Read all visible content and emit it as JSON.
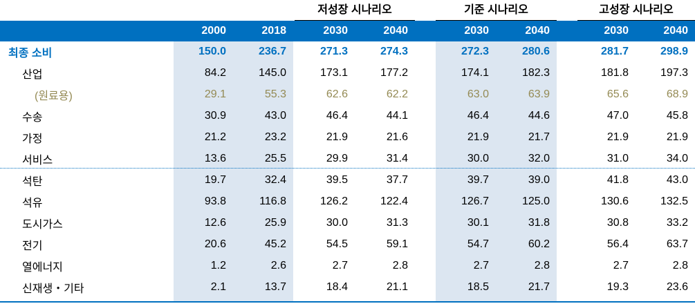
{
  "scenarios": [
    {
      "label": "저성장 시나리오"
    },
    {
      "label": "기준 시나리오"
    },
    {
      "label": "고성장 시나리오"
    }
  ],
  "years": [
    "2000",
    "2018",
    "2030",
    "2040",
    "2030",
    "2040",
    "2030",
    "2040"
  ],
  "rows": [
    {
      "label": "최종 소비",
      "values": [
        "150.0",
        "236.7",
        "271.3",
        "274.3",
        "272.3",
        "280.6",
        "281.7",
        "298.9"
      ]
    },
    {
      "label": "산업",
      "values": [
        "84.2",
        "145.0",
        "173.1",
        "177.2",
        "174.1",
        "182.3",
        "181.8",
        "197.3"
      ]
    },
    {
      "label": "(원료용)",
      "values": [
        "29.1",
        "55.3",
        "62.6",
        "62.2",
        "63.0",
        "63.9",
        "65.6",
        "68.9"
      ]
    },
    {
      "label": "수송",
      "values": [
        "30.9",
        "43.0",
        "46.4",
        "44.1",
        "46.4",
        "44.6",
        "47.0",
        "45.8"
      ]
    },
    {
      "label": "가정",
      "values": [
        "21.2",
        "23.2",
        "21.9",
        "21.6",
        "21.9",
        "21.7",
        "21.9",
        "21.9"
      ]
    },
    {
      "label": "서비스",
      "values": [
        "13.6",
        "25.5",
        "29.9",
        "31.4",
        "30.0",
        "32.0",
        "31.0",
        "34.0"
      ]
    },
    {
      "label": "석탄",
      "values": [
        "19.7",
        "32.4",
        "39.5",
        "37.7",
        "39.7",
        "39.0",
        "41.8",
        "43.0"
      ]
    },
    {
      "label": "석유",
      "values": [
        "93.8",
        "116.8",
        "126.2",
        "122.4",
        "126.7",
        "125.0",
        "130.6",
        "132.5"
      ]
    },
    {
      "label": "도시가스",
      "values": [
        "12.6",
        "25.9",
        "30.0",
        "31.3",
        "30.1",
        "31.8",
        "30.8",
        "33.2"
      ]
    },
    {
      "label": "전기",
      "values": [
        "20.6",
        "45.2",
        "54.5",
        "59.1",
        "54.7",
        "60.2",
        "56.4",
        "63.7"
      ]
    },
    {
      "label": "열에너지",
      "values": [
        "1.2",
        "2.6",
        "2.7",
        "2.8",
        "2.7",
        "2.8",
        "2.7",
        "2.8"
      ]
    },
    {
      "label": "신재생・기타",
      "values": [
        "2.1",
        "13.7",
        "18.4",
        "21.1",
        "18.5",
        "21.7",
        "19.3",
        "23.6"
      ]
    }
  ],
  "colors": {
    "accent": "#0070c0",
    "shade": "#dce6f1",
    "paren_text": "#948a54"
  }
}
